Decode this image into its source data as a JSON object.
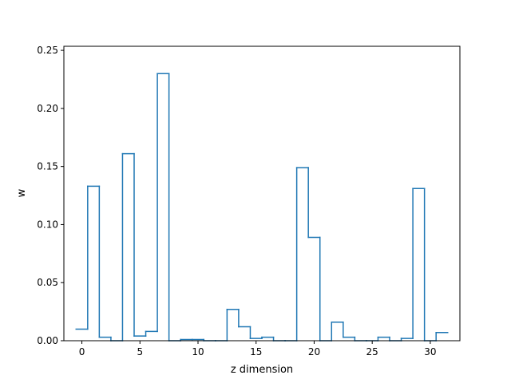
{
  "chart_data": {
    "type": "step",
    "x": [
      0,
      1,
      2,
      3,
      4,
      5,
      6,
      7,
      8,
      9,
      10,
      11,
      12,
      13,
      14,
      15,
      16,
      17,
      18,
      19,
      20,
      21,
      22,
      23,
      24,
      25,
      26,
      27,
      28,
      29,
      30,
      31
    ],
    "values": [
      0.01,
      0.133,
      0.003,
      0.0,
      0.161,
      0.004,
      0.008,
      0.23,
      0.0,
      0.001,
      0.001,
      0.0,
      0.0,
      0.027,
      0.012,
      0.002,
      0.003,
      0.0,
      0.0,
      0.149,
      0.089,
      0.0,
      0.016,
      0.003,
      0.0,
      0.0,
      0.003,
      0.0,
      0.002,
      0.131,
      0.0,
      0.007
    ],
    "step_where": "mid",
    "title": "",
    "xlabel": "z dimension",
    "ylabel": "w",
    "xlim": [
      -1.55,
      32.55
    ],
    "ylim": [
      0,
      0.2535
    ],
    "xticks": [
      0,
      5,
      10,
      15,
      20,
      25,
      30
    ],
    "xtick_labels": [
      "0",
      "5",
      "10",
      "15",
      "20",
      "25",
      "30"
    ],
    "yticks": [
      0.0,
      0.05,
      0.1,
      0.15,
      0.2,
      0.25
    ],
    "ytick_labels": [
      "0.00",
      "0.05",
      "0.10",
      "0.15",
      "0.20",
      "0.25"
    ],
    "grid": false,
    "line_color": "#1f77b4"
  }
}
